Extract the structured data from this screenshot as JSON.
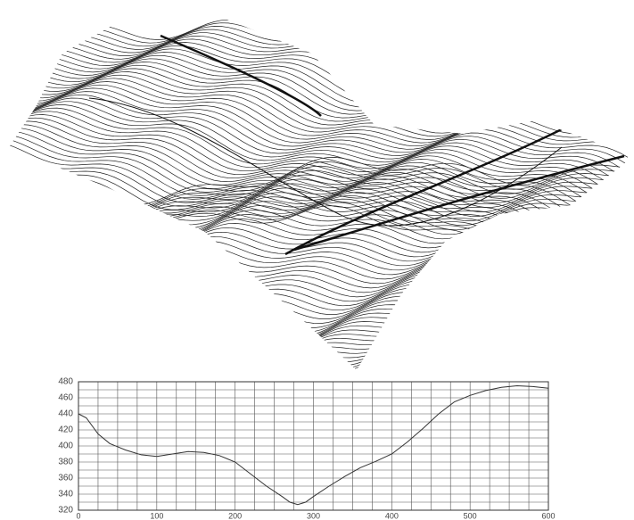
{
  "chart_data": {
    "type": "line",
    "x": [
      0,
      10,
      25,
      40,
      60,
      80,
      100,
      120,
      140,
      160,
      180,
      200,
      220,
      240,
      260,
      270,
      280,
      290,
      300,
      320,
      340,
      360,
      380,
      400,
      420,
      440,
      460,
      480,
      500,
      520,
      540,
      560,
      580,
      600
    ],
    "values": [
      440,
      435,
      415,
      403,
      395,
      389,
      387,
      390,
      393,
      392,
      388,
      380,
      365,
      350,
      337,
      330,
      327,
      330,
      337,
      350,
      362,
      373,
      381,
      390,
      405,
      422,
      440,
      455,
      463,
      469,
      473,
      475,
      474,
      472
    ],
    "color": "#333333",
    "xlim": [
      0,
      600
    ],
    "xticks": [
      0,
      100,
      200,
      300,
      400,
      500,
      600
    ],
    "ylim": [
      320,
      480
    ],
    "yticks": [
      320,
      340,
      360,
      380,
      400,
      420,
      440,
      460,
      480
    ],
    "grid": true,
    "minor_grid": {
      "x": 4,
      "y": 2
    }
  }
}
